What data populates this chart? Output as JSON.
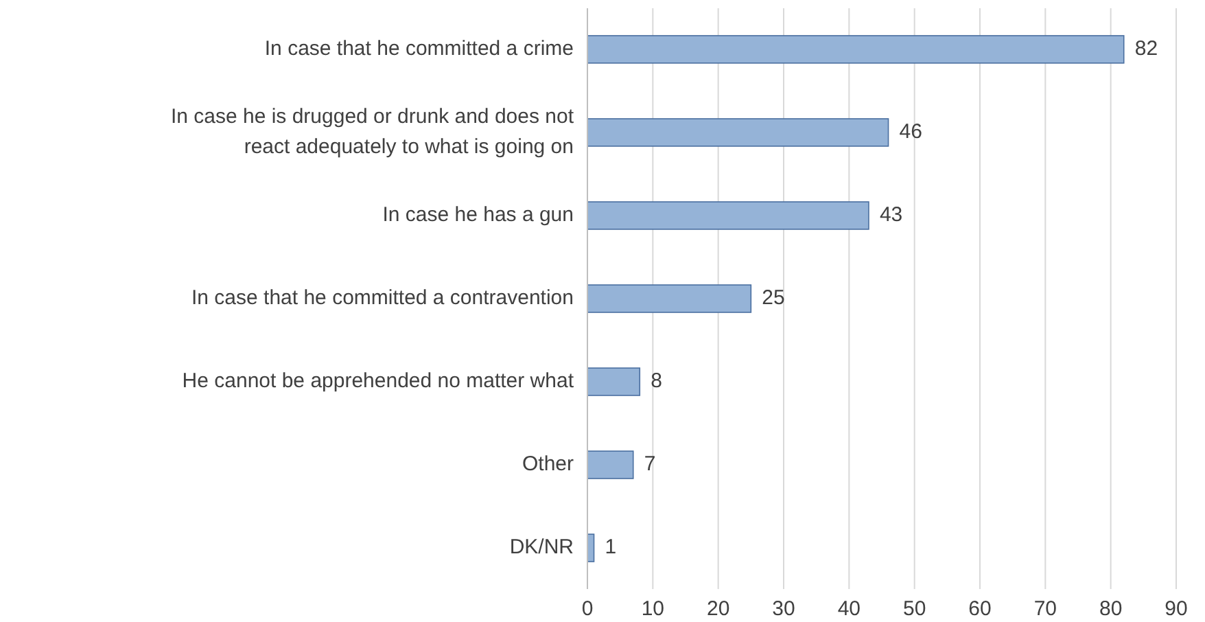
{
  "chart_data": {
    "type": "bar",
    "orientation": "horizontal",
    "categories": [
      "In case that he committed a crime",
      "In case he is drugged or drunk and does not react adequately to what is going on",
      "In case he has a gun",
      "In case that he committed a contravention",
      "He cannot be apprehended no matter what",
      "Other",
      "DK/NR"
    ],
    "values": [
      82,
      46,
      43,
      25,
      8,
      7,
      1
    ],
    "color": "#95b3d7",
    "xlim": [
      0,
      90
    ],
    "xticks": [
      0,
      10,
      20,
      30,
      40,
      50,
      60,
      70,
      80,
      90
    ],
    "grid": "x",
    "data_labels": true
  }
}
